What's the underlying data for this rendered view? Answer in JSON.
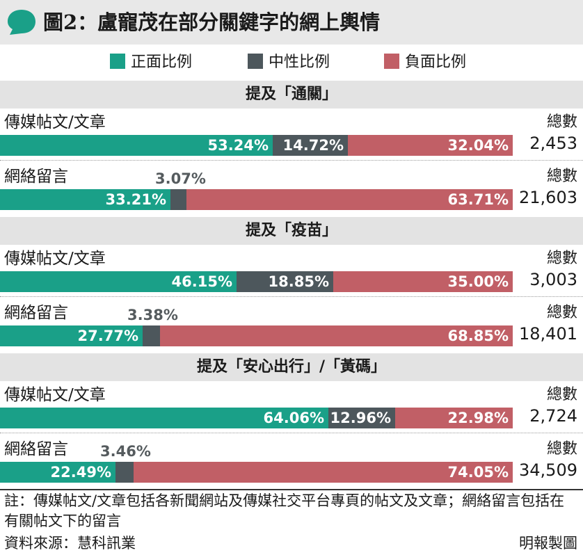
{
  "title": "圖2：盧寵茂在部分關鍵字的網上輿情",
  "legend": [
    {
      "label": "正面比例",
      "color": "#1aa088"
    },
    {
      "label": "中性比例",
      "color": "#4d575c"
    },
    {
      "label": "負面比例",
      "color": "#c15f66"
    }
  ],
  "total_label": "總數",
  "chart_data": {
    "type": "bar",
    "stacked": true,
    "orientation": "horizontal",
    "series_names": [
      "正面比例",
      "中性比例",
      "負面比例"
    ],
    "groups": [
      {
        "heading": "提及「通關」",
        "rows": [
          {
            "category": "傳媒帖文/文章",
            "values": [
              53.24,
              14.72,
              32.04
            ],
            "labels": [
              "53.24%",
              "14.72%",
              "32.04%"
            ],
            "total": "2,453"
          },
          {
            "category": "網絡留言",
            "values": [
              33.21,
              3.07,
              63.71
            ],
            "labels": [
              "33.21%",
              "3.07%",
              "63.71%"
            ],
            "total": "21,603"
          }
        ]
      },
      {
        "heading": "提及「疫苗」",
        "rows": [
          {
            "category": "傳媒帖文/文章",
            "values": [
              46.15,
              18.85,
              35.0
            ],
            "labels": [
              "46.15%",
              "18.85%",
              "35.00%"
            ],
            "total": "3,003"
          },
          {
            "category": "網絡留言",
            "values": [
              27.77,
              3.38,
              68.85
            ],
            "labels": [
              "27.77%",
              "3.38%",
              "68.85%"
            ],
            "total": "18,401"
          }
        ]
      },
      {
        "heading": "提及「安心出行」/「黃碼」",
        "rows": [
          {
            "category": "傳媒帖文/文章",
            "values": [
              64.06,
              12.96,
              22.98
            ],
            "labels": [
              "64.06%",
              "12.96%",
              "22.98%"
            ],
            "total": "2,724"
          },
          {
            "category": "網絡留言",
            "values": [
              22.49,
              3.46,
              74.05
            ],
            "labels": [
              "22.49%",
              "3.46%",
              "74.05%"
            ],
            "total": "34,509"
          }
        ]
      }
    ]
  },
  "note": "註：傳媒帖文/文章包括各新聞網站及傳媒社交平台專頁的帖文及文章；網絡留言包括在有關帖文下的留言",
  "source": "資料來源：慧科訊業",
  "credit": "明報製圖"
}
